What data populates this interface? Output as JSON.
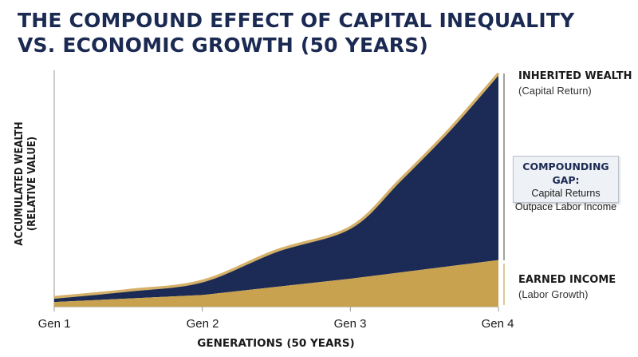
{
  "title_line1": "THE COMPOUND EFFECT OF CAPITAL INEQUALITY",
  "title_line2": "VS. ECONOMIC GROWTH (50 YEARS)",
  "colors": {
    "inherited_fill": "#1b2b55",
    "earned_fill": "#c9a24f",
    "outline": "#d4b068",
    "title": "#1b2a52"
  },
  "annotations": {
    "inherited_head": "INHERITED WEALTH",
    "inherited_sub": "(Capital Return)",
    "gap_head": "COMPOUNDING GAP:",
    "gap_line1": "Capital Returns",
    "gap_line2": "Outpace Labor Income",
    "earned_head": "EARNED INCOME",
    "earned_sub": "(Labor Growth)"
  },
  "chart_data": {
    "type": "area",
    "title": "THE COMPOUND EFFECT OF CAPITAL INEQUALITY VS. ECONOMIC GROWTH (50 YEARS)",
    "xlabel": "GENERATIONS (50 YEARS)",
    "ylabel_line1": "ACCUMULATED WEALTH",
    "ylabel_line2": "(RELATIVE VALUE)",
    "categories": [
      "Gen 1",
      "Gen 2",
      "Gen 3",
      "Gen 4"
    ],
    "ylim": [
      0,
      100
    ],
    "grid": false,
    "legend": "none",
    "series": [
      {
        "name": "EARNED INCOME",
        "x": [
          1,
          2,
          3,
          4
        ],
        "values": [
          2,
          5,
          12,
          20
        ]
      },
      {
        "name": "INHERITED WEALTH",
        "x": [
          1,
          1.5,
          2,
          2.5,
          3,
          3.33,
          3.67,
          4
        ],
        "values": [
          4,
          7,
          11,
          24,
          34,
          54,
          76,
          100
        ]
      }
    ]
  }
}
